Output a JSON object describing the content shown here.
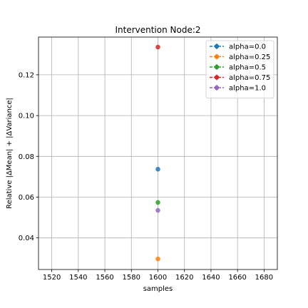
{
  "chart_data": {
    "type": "scatter",
    "title": "Intervention Node:2",
    "xlabel": "samples",
    "ylabel": "Relative |ΔMean| + |ΔVariance|",
    "xlim": [
      1510,
      1690
    ],
    "ylim": [
      0.0245,
      0.1385
    ],
    "xticks": [
      1520,
      1540,
      1560,
      1580,
      1600,
      1620,
      1640,
      1660,
      1680
    ],
    "yticks": [
      0.04,
      0.06,
      0.08,
      0.1,
      0.12
    ],
    "ytick_labels": [
      "0.04",
      "0.06",
      "0.08",
      "0.10",
      "0.12"
    ],
    "grid": true,
    "legend_position": "top-right",
    "series": [
      {
        "name": "alpha=0.0",
        "color": "#1f77b4",
        "x": [
          1600
        ],
        "y": [
          0.0737
        ]
      },
      {
        "name": "alpha=0.25",
        "color": "#ff7f0e",
        "x": [
          1600
        ],
        "y": [
          0.0297
        ]
      },
      {
        "name": "alpha=0.5",
        "color": "#2ca02c",
        "x": [
          1600
        ],
        "y": [
          0.0574
        ]
      },
      {
        "name": "alpha=0.75",
        "color": "#d62728",
        "x": [
          1600
        ],
        "y": [
          0.1336
        ]
      },
      {
        "name": "alpha=1.0",
        "color": "#9467bd",
        "x": [
          1600
        ],
        "y": [
          0.0535
        ]
      }
    ]
  }
}
